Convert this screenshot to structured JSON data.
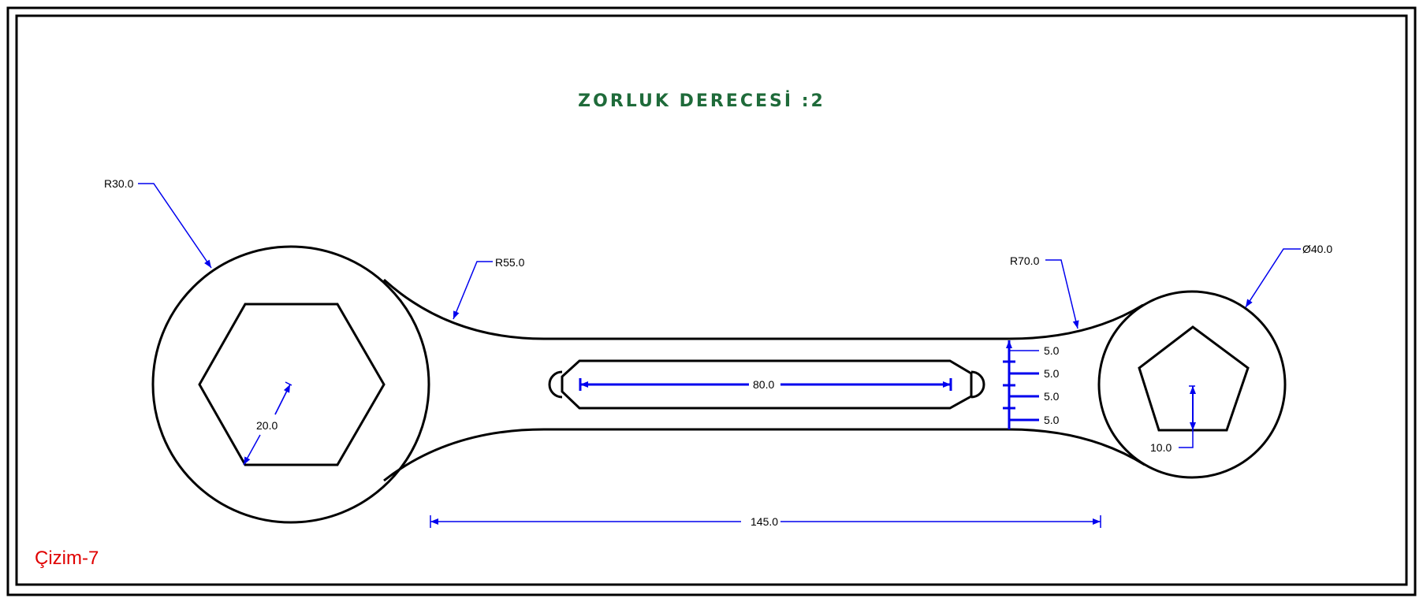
{
  "title": "ZORLUK DERECESİ :2",
  "sheet_label": "Çizim-7",
  "dimensions": {
    "big_circle_radius": "R30.0",
    "upper_left_fillet": "R55.0",
    "upper_right_fillet": "R70.0",
    "small_circle_diameter": "Ø40.0",
    "hexagon_size": "20.0",
    "slot_length": "80.0",
    "step_1": "5.0",
    "step_2": "5.0",
    "step_3": "5.0",
    "step_4": "5.0",
    "pentagon_size": "10.0",
    "overall_length": "145.0"
  },
  "colors": {
    "outline": "#000000",
    "dimension": "#0000ee",
    "title": "#1f6b3a",
    "sheet_label": "#e00000"
  }
}
